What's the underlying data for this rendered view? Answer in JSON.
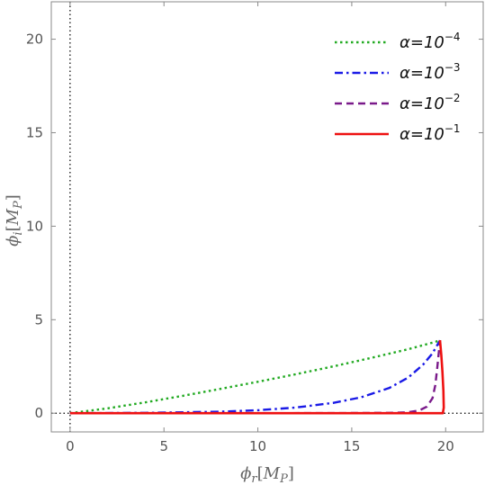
{
  "chart_data": {
    "type": "line",
    "xlabel": {
      "main": "ϕ",
      "sub": "r",
      "unit_open": "[",
      "unit_main": "M",
      "unit_sub": "P",
      "unit_close": "]"
    },
    "ylabel": {
      "main": "ϕ",
      "sub": "i",
      "unit_open": "[",
      "unit_main": "M",
      "unit_sub": "P",
      "unit_close": "]"
    },
    "xlim": [
      -1,
      22
    ],
    "ylim": [
      -1,
      22
    ],
    "xticks": [
      0,
      5,
      10,
      15,
      20
    ],
    "yticks": [
      0,
      5,
      10,
      15,
      20
    ],
    "reference_lines": {
      "x0": 0,
      "y0": 0,
      "style": "dotted",
      "color": "#000000"
    },
    "legend_placement": "top-right",
    "series": [
      {
        "name": {
          "base": "α=10",
          "exp": "−4"
        },
        "color": "#22aa22",
        "dash": "dotted",
        "points": [
          [
            0,
            0
          ],
          [
            2,
            0.26
          ],
          [
            4,
            0.58
          ],
          [
            6,
            0.93
          ],
          [
            8,
            1.3
          ],
          [
            10,
            1.68
          ],
          [
            12,
            2.08
          ],
          [
            14,
            2.5
          ],
          [
            16,
            2.95
          ],
          [
            18,
            3.42
          ],
          [
            19.4,
            3.8
          ],
          [
            19.7,
            3.9
          ]
        ]
      },
      {
        "name": {
          "base": "α=10",
          "exp": "−3"
        },
        "color": "#1a1ae6",
        "dash": "dashdot",
        "points": [
          [
            0,
            0
          ],
          [
            4,
            0.02
          ],
          [
            8,
            0.08
          ],
          [
            10,
            0.16
          ],
          [
            12,
            0.3
          ],
          [
            14,
            0.55
          ],
          [
            15.5,
            0.85
          ],
          [
            17,
            1.35
          ],
          [
            18,
            1.9
          ],
          [
            18.8,
            2.6
          ],
          [
            19.3,
            3.2
          ],
          [
            19.7,
            3.9
          ]
        ]
      },
      {
        "name": {
          "base": "α=10",
          "exp": "−2"
        },
        "color": "#7a1a8a",
        "dash": "dashed",
        "points": [
          [
            0,
            0
          ],
          [
            10,
            0
          ],
          [
            15,
            0.01
          ],
          [
            17,
            0.02
          ],
          [
            18,
            0.05
          ],
          [
            18.6,
            0.15
          ],
          [
            19.0,
            0.35
          ],
          [
            19.3,
            0.8
          ],
          [
            19.45,
            1.5
          ],
          [
            19.55,
            2.4
          ],
          [
            19.65,
            3.4
          ],
          [
            19.7,
            3.9
          ]
        ]
      },
      {
        "name": {
          "base": "α=10",
          "exp": "−1"
        },
        "color": "#ee1111",
        "dash": "solid",
        "points": [
          [
            0,
            0
          ],
          [
            10,
            0
          ],
          [
            19.85,
            0
          ],
          [
            19.9,
            0.3
          ],
          [
            19.88,
            1.2
          ],
          [
            19.83,
            2.2
          ],
          [
            19.77,
            3.1
          ],
          [
            19.7,
            3.9
          ]
        ]
      }
    ]
  }
}
